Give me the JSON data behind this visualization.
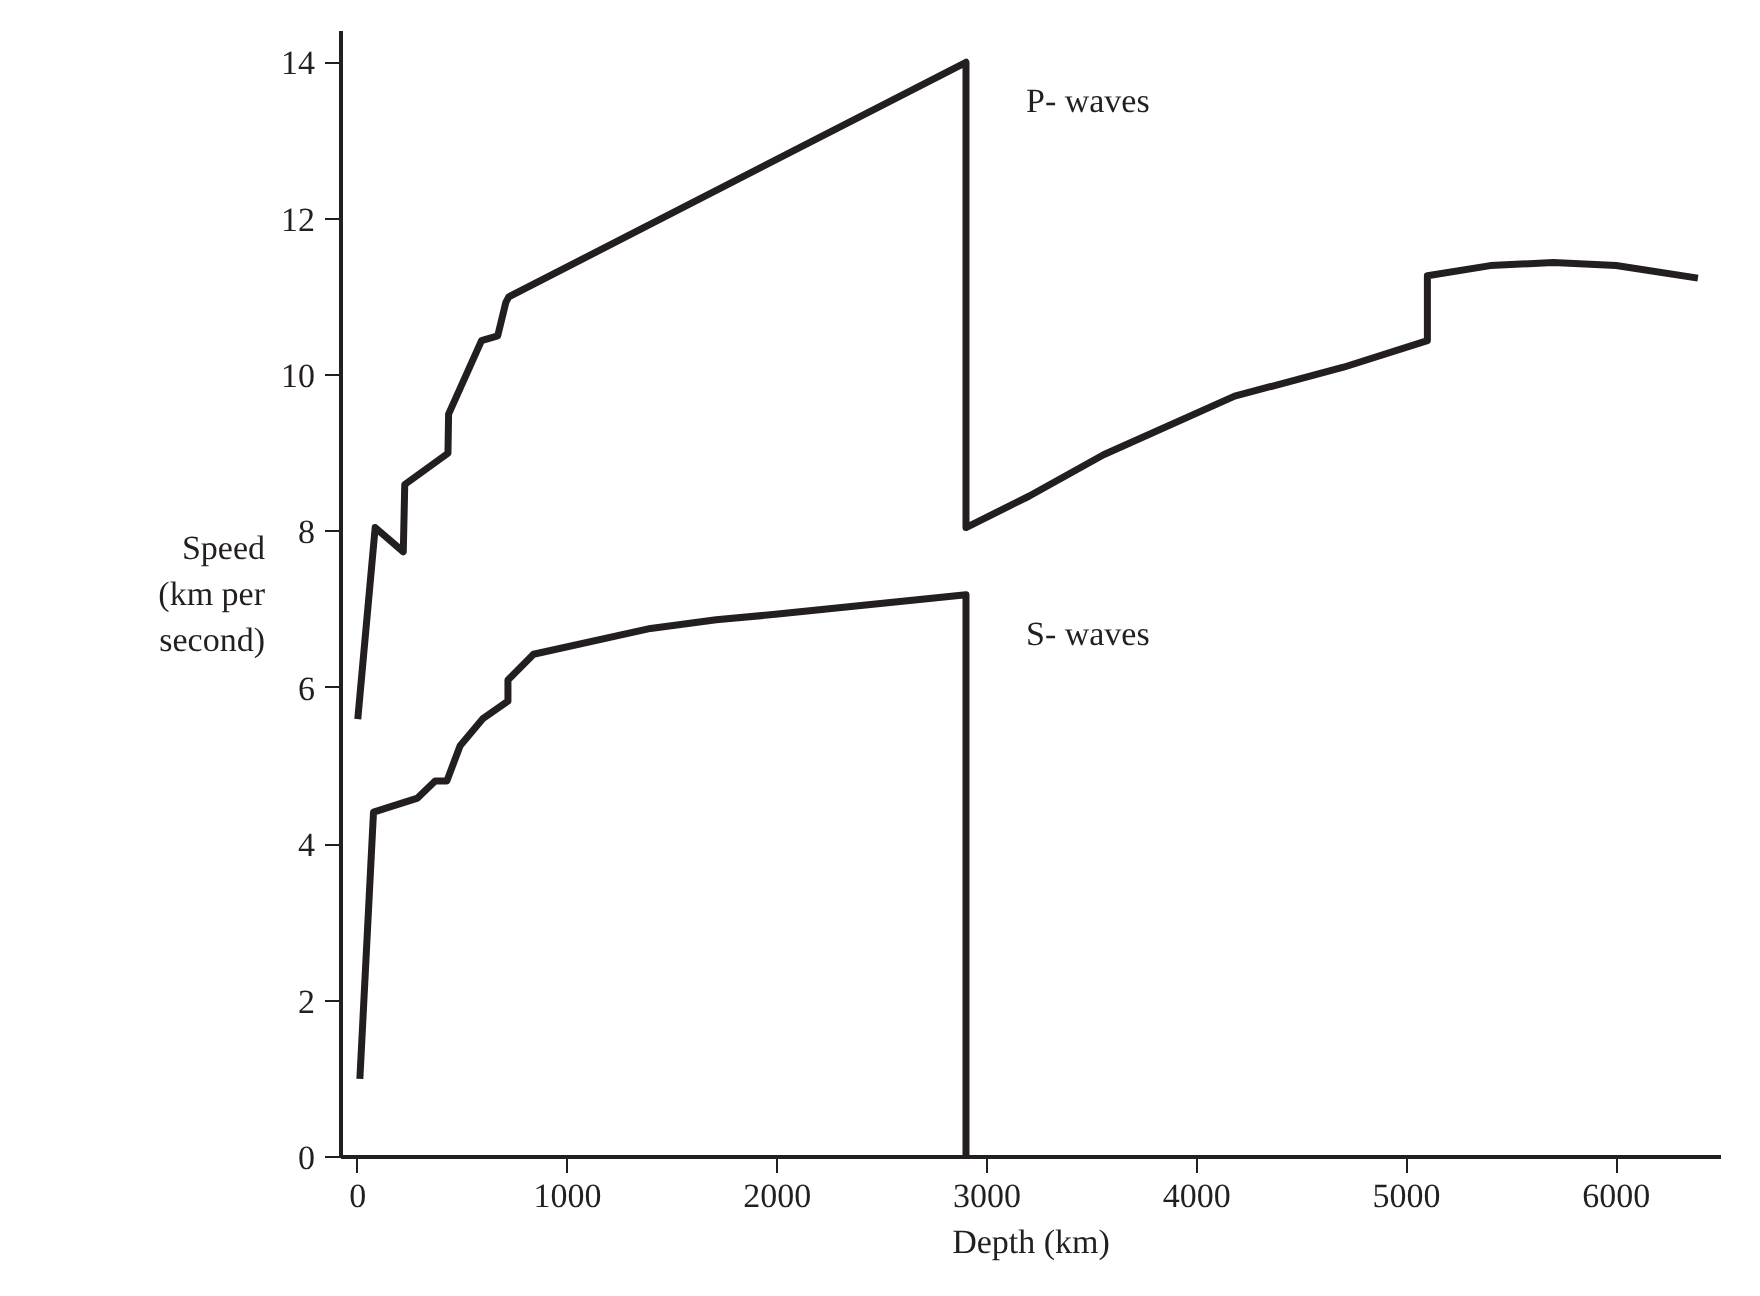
{
  "chart_data": {
    "type": "line",
    "xlabel": "Depth (km)",
    "ylabel": "Speed\n(km per\nsecond)",
    "xlim": [
      -80,
      6500
    ],
    "ylim": [
      0,
      14.4
    ],
    "xticks": [
      0,
      1000,
      2000,
      3000,
      4000,
      5000,
      6000
    ],
    "yticks": [
      0,
      2,
      4,
      6,
      8,
      10,
      12,
      14
    ],
    "grid": false,
    "marker": "none",
    "line_style": "solid",
    "series": [
      {
        "name": "P- waves",
        "color": "#231f20",
        "x": [
          0,
          83,
          217,
          224,
          430,
          433,
          590,
          667,
          706,
          720,
          2900,
          2900,
          3200,
          3556,
          4181,
          4700,
          5100,
          5100,
          5400,
          5700,
          6000,
          6390
        ],
        "values": [
          5.6,
          8.05,
          7.74,
          8.6,
          9.0,
          9.5,
          10.44,
          10.5,
          10.93,
          11.0,
          14.0,
          8.05,
          8.45,
          8.98,
          9.73,
          10.1,
          10.44,
          11.27,
          11.4,
          11.44,
          11.4,
          11.24
        ]
      },
      {
        "name": "S- waves",
        "color": "#231f20",
        "x": [
          10,
          75,
          285,
          369,
          425,
          488,
          598,
          716,
          716,
          838,
          1396,
          1709,
          1991,
          2900,
          2900
        ],
        "values": [
          1.0,
          4.41,
          4.59,
          4.81,
          4.81,
          5.26,
          5.61,
          5.83,
          6.1,
          6.43,
          6.76,
          6.87,
          6.94,
          7.19,
          0
        ]
      }
    ]
  }
}
